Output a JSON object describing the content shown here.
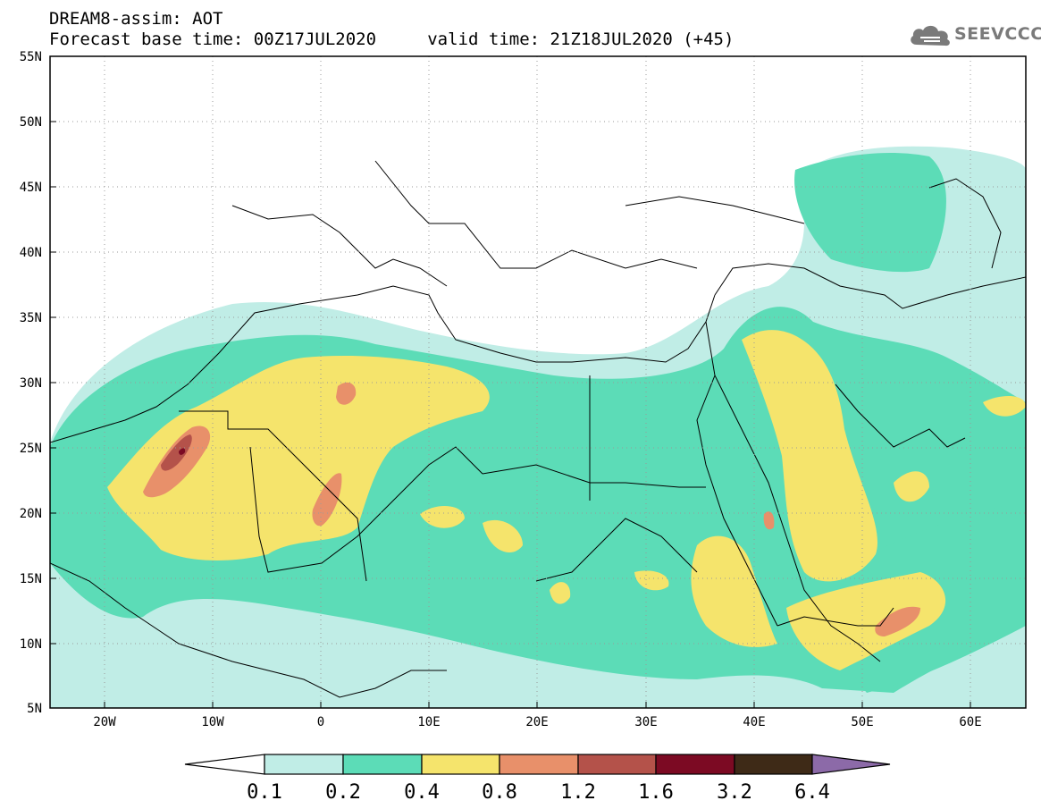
{
  "title": {
    "line1": "DREAM8-assim: AOT",
    "line2": "Forecast base time: 00Z17JUL2020     valid time: 21Z18JUL2020 (+45)"
  },
  "logo": {
    "text": "SEEVCCC",
    "icon": "cloud-icon",
    "color": "#7a7a7a"
  },
  "map": {
    "lat_labels": [
      "55N",
      "50N",
      "45N",
      "40N",
      "35N",
      "30N",
      "25N",
      "20N",
      "15N",
      "10N",
      "5N"
    ],
    "lon_labels": [
      "20W",
      "10W",
      "0",
      "10E",
      "20E",
      "30E",
      "40E",
      "50E",
      "60E"
    ],
    "lat_range": [
      5,
      55
    ],
    "lon_range": [
      -25,
      65
    ],
    "grid": "dotted"
  },
  "colorbar": {
    "labels": [
      "0.1",
      "0.2",
      "0.4",
      "0.8",
      "1.2",
      "1.6",
      "3.2",
      "6.4"
    ],
    "colors": [
      "#ffffff",
      "#c0ede6",
      "#5cdcb7",
      "#f5e46c",
      "#e8906a",
      "#b4524a",
      "#7c0a23",
      "#3e2a17",
      "#8c6aa8"
    ]
  }
}
